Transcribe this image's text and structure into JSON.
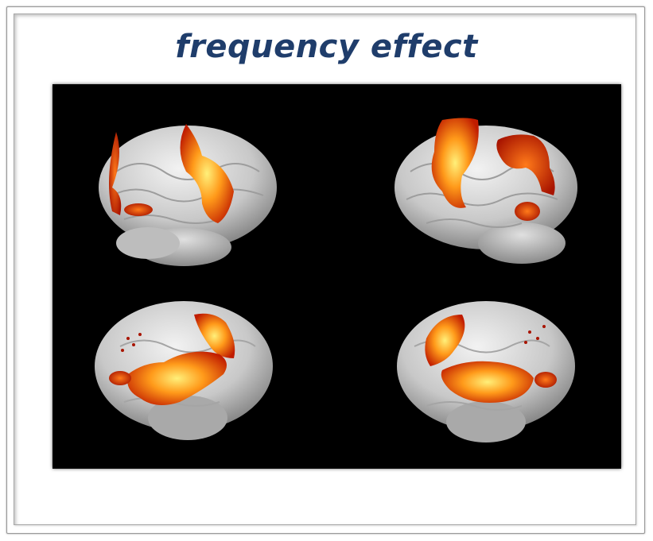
{
  "title": "frequency effect",
  "figure": {
    "description_views": [
      "left-lateral",
      "right-lateral",
      "left-medial-inflated",
      "right-medial-inflated"
    ],
    "colors": {
      "background": "#000000",
      "brain": "#d9d9d9",
      "activation_low": "#b21a00",
      "activation_mid": "#ff5a00",
      "activation_high": "#ffe14a",
      "title": "#1f3d6b"
    }
  }
}
